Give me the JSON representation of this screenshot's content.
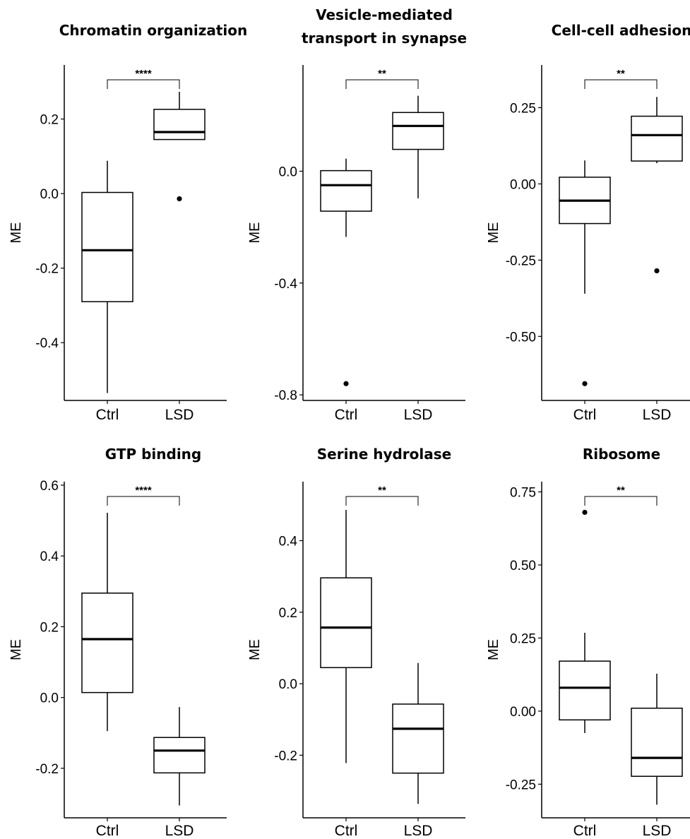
{
  "chart_data": [
    {
      "type": "box",
      "title": [
        "Chromatin organization"
      ],
      "ylabel": "ME",
      "categories": [
        "Ctrl",
        "LSD"
      ],
      "yticks": [
        0.2,
        0.0,
        -0.2,
        -0.4
      ],
      "ytick_labels": [
        "0.2",
        "0.0",
        "-0.2",
        "-0.4"
      ],
      "ylim": [
        -0.555,
        0.345
      ],
      "boxes": [
        {
          "whisker_low": -0.535,
          "q1": -0.29,
          "median": -0.152,
          "q3": 0.003,
          "whisker_high": 0.088,
          "outliers": []
        },
        {
          "whisker_low": 0.145,
          "q1": 0.145,
          "median": 0.165,
          "q3": 0.226,
          "whisker_high": 0.273,
          "outliers": [
            -0.014
          ]
        }
      ],
      "significance": "****"
    },
    {
      "type": "box",
      "title": [
        "Vesicle-mediated",
        "transport in synapse"
      ],
      "ylabel": "ME",
      "categories": [
        "Ctrl",
        "LSD"
      ],
      "yticks": [
        0.0,
        -0.4,
        -0.8
      ],
      "ytick_labels": [
        "0.0",
        "-0.4",
        "-0.8"
      ],
      "ylim": [
        -0.82,
        0.38
      ],
      "boxes": [
        {
          "whisker_low": -0.235,
          "q1": -0.143,
          "median": -0.05,
          "q3": 0.002,
          "whisker_high": 0.045,
          "outliers": [
            -0.76
          ]
        },
        {
          "whisker_low": -0.097,
          "q1": 0.078,
          "median": 0.162,
          "q3": 0.21,
          "whisker_high": 0.27,
          "outliers": []
        }
      ],
      "significance": "**"
    },
    {
      "type": "box",
      "title": [
        "Cell-cell adhesion"
      ],
      "ylabel": "ME",
      "categories": [
        "Ctrl",
        "LSD"
      ],
      "yticks": [
        0.25,
        0.0,
        -0.25,
        -0.5
      ],
      "ytick_labels": [
        "0.25",
        "0.00",
        "-0.25",
        "-0.50"
      ],
      "ylim": [
        -0.71,
        0.39
      ],
      "boxes": [
        {
          "whisker_low": -0.36,
          "q1": -0.13,
          "median": -0.055,
          "q3": 0.022,
          "whisker_high": 0.077,
          "outliers": [
            -0.655
          ]
        },
        {
          "whisker_low": 0.068,
          "q1": 0.075,
          "median": 0.16,
          "q3": 0.222,
          "whisker_high": 0.285,
          "outliers": [
            -0.285
          ]
        }
      ],
      "significance": "**"
    },
    {
      "type": "box",
      "title": [
        "GTP binding"
      ],
      "ylabel": "ME",
      "categories": [
        "Ctrl",
        "LSD"
      ],
      "yticks": [
        0.6,
        0.4,
        0.2,
        0.0,
        -0.2
      ],
      "ytick_labels": [
        "0.6",
        "0.4",
        "0.2",
        "0.0",
        "-0.2"
      ],
      "ylim": [
        -0.34,
        0.61
      ],
      "boxes": [
        {
          "whisker_low": -0.095,
          "q1": 0.014,
          "median": 0.165,
          "q3": 0.295,
          "whisker_high": 0.522,
          "outliers": []
        },
        {
          "whisker_low": -0.305,
          "q1": -0.213,
          "median": -0.15,
          "q3": -0.113,
          "whisker_high": -0.027,
          "outliers": []
        }
      ],
      "significance": "****"
    },
    {
      "type": "box",
      "title": [
        "Serine hydrolase"
      ],
      "ylabel": "ME",
      "categories": [
        "Ctrl",
        "LSD"
      ],
      "yticks": [
        0.4,
        0.2,
        0.0,
        -0.2
      ],
      "ytick_labels": [
        "0.4",
        "0.2",
        "0.0",
        "-0.2"
      ],
      "ylim": [
        -0.375,
        0.565
      ],
      "boxes": [
        {
          "whisker_low": -0.222,
          "q1": 0.045,
          "median": 0.157,
          "q3": 0.296,
          "whisker_high": 0.486,
          "outliers": []
        },
        {
          "whisker_low": -0.336,
          "q1": -0.25,
          "median": -0.126,
          "q3": -0.057,
          "whisker_high": 0.058,
          "outliers": []
        }
      ],
      "significance": "**"
    },
    {
      "type": "box",
      "title": [
        "Ribosome"
      ],
      "ylabel": "ME",
      "categories": [
        "Ctrl",
        "LSD"
      ],
      "yticks": [
        0.75,
        0.5,
        0.25,
        0.0,
        -0.25
      ],
      "ytick_labels": [
        "0.75",
        "0.50",
        "0.25",
        "0.00",
        "-0.25"
      ],
      "ylim": [
        -0.365,
        0.785
      ],
      "boxes": [
        {
          "whisker_low": -0.075,
          "q1": -0.03,
          "median": 0.08,
          "q3": 0.171,
          "whisker_high": 0.268,
          "outliers": [
            0.68
          ]
        },
        {
          "whisker_low": -0.32,
          "q1": -0.223,
          "median": -0.16,
          "q3": 0.01,
          "whisker_high": 0.128,
          "outliers": []
        }
      ],
      "significance": "**"
    }
  ]
}
